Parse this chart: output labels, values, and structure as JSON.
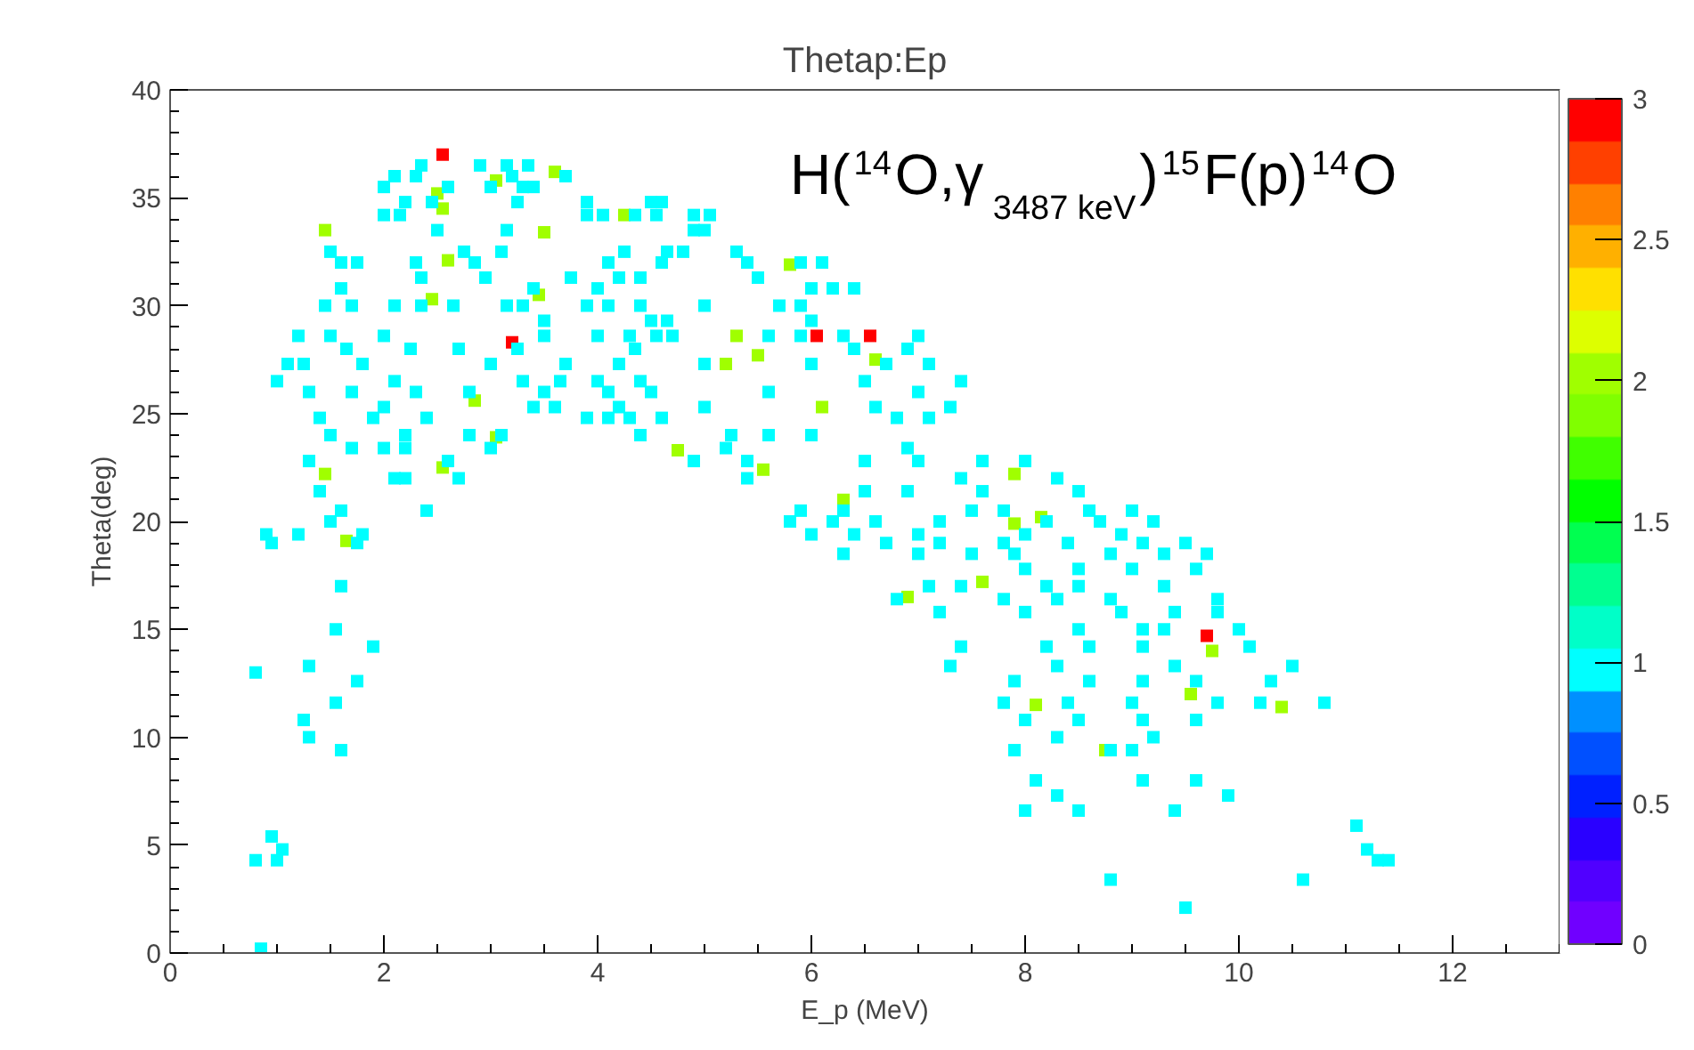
{
  "chart_data": {
    "type": "scatter",
    "title": "Thetap:Ep",
    "xlabel": "E_p (MeV)",
    "ylabel": "Theta(deg)",
    "annotations": [
      "H($^{14}$O,γ$_{3487 keV}$)$^{15}$F(p)$^{14}$O"
    ],
    "marker": "square",
    "grid": false,
    "xlim": [
      0,
      13
    ],
    "ylim": [
      0,
      40
    ],
    "xticks": [
      0,
      2,
      4,
      6,
      8,
      10,
      12
    ],
    "yticks": [
      0,
      5,
      10,
      15,
      20,
      25,
      30,
      35,
      40
    ],
    "clim": [
      0,
      3
    ],
    "cticks": [
      0,
      0.5,
      1,
      1.5,
      2,
      2.5,
      3
    ],
    "x": [
      2.55,
      3.2,
      6.05,
      6.55,
      9.7,
      3.6,
      2.5,
      3.05,
      2.55,
      4.25,
      1.45,
      3.5,
      2.6,
      5.8,
      2.45,
      3.45,
      5.5,
      5.3,
      6.1,
      6.6,
      5.2,
      4.75,
      5.55,
      6.3,
      1.45,
      2.55,
      1.65,
      2.85,
      7.9,
      8.15,
      7.9,
      6.9,
      7.6,
      8.1,
      8.75,
      9.75,
      9.55,
      10.4,
      3.05,
      2.9,
      3.15,
      3.35,
      2.35,
      2.1,
      3.2,
      3.7,
      2.3,
      2.6,
      3.3,
      3.4,
      2.0,
      3.0,
      2.2,
      2.45,
      3.25,
      3.9,
      4.6,
      4.5,
      2.0,
      2.15,
      3.9,
      4.05,
      4.35,
      4.55,
      4.9,
      5.05,
      2.5,
      4.9,
      5.0,
      3.15,
      4.25,
      3.1,
      1.5,
      2.75,
      4.65,
      4.8,
      5.3,
      1.6,
      1.75,
      2.3,
      2.85,
      4.1,
      4.6,
      5.4,
      5.9,
      6.1,
      2.35,
      2.95,
      4.2,
      4.4,
      3.75,
      5.5,
      1.6,
      3.4,
      4.0,
      6.0,
      6.2,
      6.4,
      1.45,
      1.7,
      2.1,
      2.35,
      2.65,
      3.15,
      3.3,
      3.9,
      4.1,
      4.4,
      5.0,
      5.7,
      5.9,
      3.5,
      4.5,
      4.65,
      6.0,
      1.2,
      1.5,
      2.0,
      3.5,
      4.0,
      4.3,
      4.55,
      4.7,
      5.6,
      5.9,
      6.3,
      7.0,
      1.65,
      2.25,
      2.7,
      3.25,
      4.35,
      6.4,
      6.9,
      1.1,
      1.25,
      1.8,
      3.0,
      3.7,
      4.2,
      5.0,
      6.0,
      6.7,
      7.1,
      1.0,
      2.1,
      3.3,
      3.65,
      4.0,
      4.4,
      6.5,
      7.4,
      1.3,
      1.7,
      2.3,
      2.8,
      3.5,
      4.1,
      4.5,
      5.6,
      7.0,
      2.0,
      3.4,
      3.6,
      4.2,
      5.0,
      6.6,
      7.3,
      1.4,
      1.9,
      2.4,
      3.9,
      4.1,
      4.3,
      4.6,
      6.8,
      7.1,
      1.5,
      2.2,
      2.8,
      3.1,
      4.4,
      5.25,
      5.6,
      6.0,
      1.7,
      2.0,
      2.2,
      3.0,
      5.2,
      6.9,
      1.3,
      2.6,
      4.9,
      5.4,
      6.5,
      7.0,
      7.6,
      8.0,
      2.1,
      2.2,
      2.7,
      5.4,
      7.4,
      8.3,
      1.4,
      6.5,
      6.9,
      7.6,
      8.5,
      1.6,
      2.4,
      5.9,
      6.3,
      7.5,
      7.8,
      8.6,
      9.0,
      1.5,
      5.8,
      6.2,
      6.6,
      7.2,
      8.2,
      8.7,
      9.2,
      0.9,
      1.2,
      1.8,
      6.0,
      6.4,
      7.0,
      8.0,
      8.9,
      0.95,
      1.75,
      6.7,
      7.2,
      7.8,
      8.4,
      9.1,
      9.5,
      6.3,
      7.0,
      7.5,
      7.9,
      8.8,
      9.3,
      9.7,
      8.0,
      8.5,
      9.0,
      9.6,
      1.6,
      7.1,
      7.4,
      8.2,
      8.5,
      9.3,
      6.8,
      7.8,
      8.3,
      8.8,
      9.8,
      7.2,
      8.0,
      8.9,
      9.4,
      9.8,
      1.55,
      8.5,
      9.1,
      9.3,
      10.0,
      1.9,
      7.4,
      8.2,
      8.6,
      9.1,
      10.1,
      1.3,
      7.3,
      8.3,
      9.4,
      10.5,
      1.75,
      7.9,
      8.6,
      9.1,
      9.6,
      10.3,
      1.55,
      7.8,
      8.4,
      9.0,
      9.8,
      10.2,
      10.8,
      1.25,
      8.0,
      8.5,
      9.1,
      9.6,
      1.3,
      8.3,
      9.2,
      1.6,
      7.9,
      8.8,
      9.0,
      8.1,
      9.1,
      9.6,
      8.3,
      9.9,
      8.0,
      8.5,
      9.4,
      11.1,
      0.95,
      1.05,
      11.2,
      0.8,
      1.0,
      11.3,
      11.4,
      8.8,
      10.6,
      9.5,
      0.85,
      0.8
    ],
    "values": [
      37.0,
      28.3,
      28.6,
      28.6,
      14.7,
      36.2,
      35.2,
      35.8,
      34.5,
      34.2,
      33.5,
      33.4,
      32.1,
      31.9,
      30.3,
      30.5,
      27.7,
      28.6,
      25.3,
      27.5,
      27.3,
      23.3,
      22.4,
      21.0,
      22.2,
      22.5,
      19.1,
      25.6,
      22.2,
      20.2,
      19.9,
      16.5,
      17.2,
      11.5,
      9.4,
      14.0,
      12.0,
      11.4,
      23.9,
      36.5,
      36.5,
      36.5,
      36.5,
      36.0,
      36.0,
      36.0,
      36.0,
      35.5,
      35.5,
      35.5,
      35.5,
      35.5,
      34.8,
      34.8,
      34.8,
      34.8,
      34.8,
      34.8,
      34.2,
      34.2,
      34.2,
      34.2,
      34.2,
      34.2,
      34.2,
      34.2,
      33.5,
      33.5,
      33.5,
      33.5,
      32.5,
      32.5,
      32.5,
      32.5,
      32.5,
      32.5,
      32.5,
      32.0,
      32.0,
      32.0,
      32.0,
      32.0,
      32.0,
      32.0,
      32.0,
      32.0,
      31.3,
      31.3,
      31.3,
      31.3,
      31.3,
      31.3,
      30.8,
      30.8,
      30.8,
      30.8,
      30.8,
      30.8,
      30.0,
      30.0,
      30.0,
      30.0,
      30.0,
      30.0,
      30.0,
      30.0,
      30.0,
      30.0,
      30.0,
      30.0,
      30.0,
      29.3,
      29.3,
      29.3,
      29.3,
      28.6,
      28.6,
      28.6,
      28.6,
      28.6,
      28.6,
      28.6,
      28.6,
      28.6,
      28.6,
      28.6,
      28.6,
      28.0,
      28.0,
      28.0,
      28.0,
      28.0,
      28.0,
      28.0,
      27.3,
      27.3,
      27.3,
      27.3,
      27.3,
      27.3,
      27.3,
      27.3,
      27.3,
      27.3,
      26.5,
      26.5,
      26.5,
      26.5,
      26.5,
      26.5,
      26.5,
      26.5,
      26.0,
      26.0,
      26.0,
      26.0,
      26.0,
      26.0,
      26.0,
      26.0,
      26.0,
      25.3,
      25.3,
      25.3,
      25.3,
      25.3,
      25.3,
      25.3,
      24.8,
      24.8,
      24.8,
      24.8,
      24.8,
      24.8,
      24.8,
      24.8,
      24.8,
      24.0,
      24.0,
      24.0,
      24.0,
      24.0,
      24.0,
      24.0,
      24.0,
      23.4,
      23.4,
      23.4,
      23.4,
      23.4,
      23.4,
      22.8,
      22.8,
      22.8,
      22.8,
      22.8,
      22.8,
      22.8,
      22.8,
      22.0,
      22.0,
      22.0,
      22.0,
      22.0,
      22.0,
      21.4,
      21.4,
      21.4,
      21.4,
      21.4,
      20.5,
      20.5,
      20.5,
      20.5,
      20.5,
      20.5,
      20.5,
      20.5,
      20.0,
      20.0,
      20.0,
      20.0,
      20.0,
      20.0,
      20.0,
      20.0,
      19.4,
      19.4,
      19.4,
      19.4,
      19.4,
      19.4,
      19.4,
      19.4,
      19.0,
      19.0,
      19.0,
      19.0,
      19.0,
      19.0,
      19.0,
      19.0,
      18.5,
      18.5,
      18.5,
      18.5,
      18.5,
      18.5,
      18.5,
      17.8,
      17.8,
      17.8,
      17.8,
      17.0,
      17.0,
      17.0,
      17.0,
      17.0,
      17.0,
      16.4,
      16.4,
      16.4,
      16.4,
      16.4,
      15.8,
      15.8,
      15.8,
      15.8,
      15.8,
      15.0,
      15.0,
      15.0,
      15.0,
      15.0,
      14.2,
      14.2,
      14.2,
      14.2,
      14.2,
      14.2,
      13.3,
      13.3,
      13.3,
      13.3,
      13.3,
      12.6,
      12.6,
      12.6,
      12.6,
      12.6,
      12.6,
      11.6,
      11.6,
      11.6,
      11.6,
      11.6,
      11.6,
      11.6,
      10.8,
      10.8,
      10.8,
      10.8,
      10.8,
      10.0,
      10.0,
      10.0,
      9.4,
      9.4,
      9.4,
      9.4,
      8.0,
      8.0,
      8.0,
      7.3,
      7.3,
      6.6,
      6.6,
      6.6,
      5.9,
      5.4,
      4.8,
      4.8,
      4.3,
      4.3,
      4.3,
      4.3,
      3.4,
      3.4,
      2.1,
      0.2,
      13.0
    ],
    "cvalues": [
      3,
      3,
      3,
      3,
      3,
      2,
      2,
      2,
      2,
      2,
      2,
      2,
      2,
      2,
      2,
      2,
      2,
      2,
      2,
      2,
      2,
      2,
      2,
      2,
      2,
      2,
      2,
      2,
      2,
      2,
      2,
      2,
      2,
      2,
      2,
      2,
      2,
      2,
      2,
      1,
      1,
      1,
      1,
      1,
      1,
      1,
      1,
      1,
      1,
      1,
      1,
      1,
      1,
      1,
      1,
      1,
      1,
      1,
      1,
      1,
      1,
      1,
      1,
      1,
      1,
      1,
      1,
      1,
      1,
      1,
      1,
      1,
      1,
      1,
      1,
      1,
      1,
      1,
      1,
      1,
      1,
      1,
      1,
      1,
      1,
      1,
      1,
      1,
      1,
      1,
      1,
      1,
      1,
      1,
      1,
      1,
      1,
      1,
      1,
      1,
      1,
      1,
      1,
      1,
      1,
      1,
      1,
      1,
      1,
      1,
      1,
      1,
      1,
      1,
      1,
      1,
      1,
      1,
      1,
      1,
      1,
      1,
      1,
      1,
      1,
      1,
      1,
      1,
      1,
      1,
      1,
      1,
      1,
      1,
      1,
      1,
      1,
      1,
      1,
      1,
      1,
      1,
      1,
      1,
      1,
      1,
      1,
      1,
      1,
      1,
      1,
      1,
      1,
      1,
      1,
      1,
      1,
      1,
      1,
      1,
      1,
      1,
      1,
      1,
      1,
      1,
      1,
      1,
      1,
      1,
      1,
      1,
      1,
      1,
      1,
      1,
      1,
      1,
      1,
      1,
      1,
      1,
      1,
      1,
      1,
      1,
      1,
      1,
      1,
      1,
      1,
      1,
      1,
      1,
      1,
      1,
      1,
      1,
      1,
      1,
      1,
      1,
      1,
      1,
      1,
      1,
      1,
      1,
      1,
      1,
      1,
      1,
      1,
      1,
      1,
      1,
      1,
      1,
      1,
      1,
      1,
      1,
      1,
      1,
      1,
      1,
      1,
      1,
      1,
      1,
      1,
      1,
      1,
      1,
      1,
      1,
      1,
      1,
      1,
      1,
      1,
      1,
      1,
      1,
      1,
      1,
      1,
      1,
      1,
      1,
      1,
      1,
      1,
      1,
      1,
      1,
      1,
      1,
      1,
      1,
      1,
      1,
      1,
      1,
      1,
      1,
      1,
      1,
      1,
      1,
      1,
      1,
      1,
      1,
      1,
      1,
      1,
      1,
      1,
      1,
      1,
      1,
      1,
      1,
      1,
      1,
      1,
      1,
      1,
      1,
      1,
      1,
      1,
      1,
      1,
      1,
      1,
      1,
      1,
      1,
      1,
      1,
      1,
      1,
      1,
      1,
      1,
      1,
      1,
      1,
      1,
      1,
      1,
      1,
      1,
      1,
      1,
      1,
      1,
      1,
      1,
      1,
      1,
      1,
      1,
      1,
      1,
      1,
      1,
      1,
      1
    ]
  }
}
